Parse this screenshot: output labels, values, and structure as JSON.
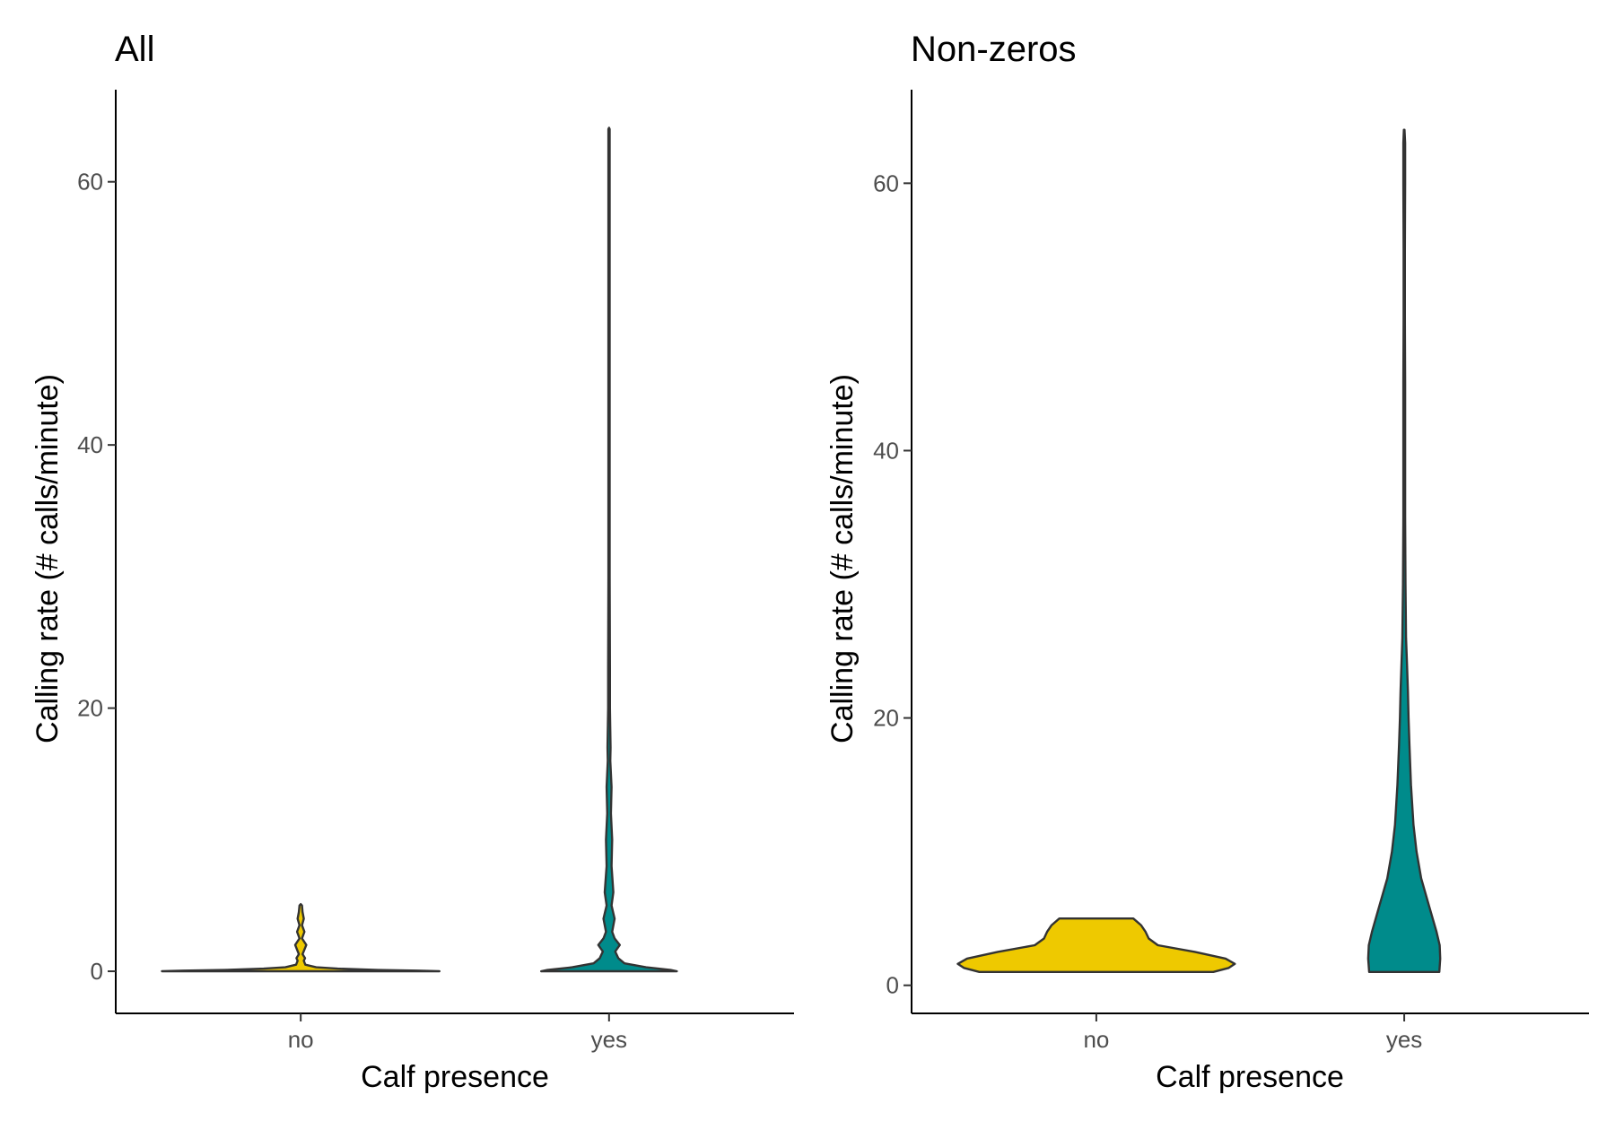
{
  "chart_data": [
    {
      "type": "violin",
      "title": "All",
      "xlabel": "Calf presence",
      "ylabel": "Calling rate (# calls/minute)",
      "categories": [
        "no",
        "yes"
      ],
      "yticks": [
        0,
        20,
        40,
        60
      ],
      "ylim": [
        -3.2,
        67
      ],
      "colors": [
        "#EEC900",
        "#008B8B"
      ],
      "violins": [
        {
          "category": "no",
          "fill": "#EEC900",
          "max_halfwidth": 0.45,
          "profile": [
            [
              0,
              0.45
            ],
            [
              0.05,
              0.38
            ],
            [
              0.1,
              0.25
            ],
            [
              0.2,
              0.12
            ],
            [
              0.3,
              0.05
            ],
            [
              0.5,
              0.015
            ],
            [
              0.8,
              0.01
            ],
            [
              1.0,
              0.014
            ],
            [
              1.3,
              0.006
            ],
            [
              2.0,
              0.018
            ],
            [
              2.5,
              0.004
            ],
            [
              3.0,
              0.012
            ],
            [
              3.5,
              0.004
            ],
            [
              4.0,
              0.01
            ],
            [
              4.5,
              0.006
            ],
            [
              5.0,
              0.004
            ],
            [
              5.1,
              0
            ]
          ]
        },
        {
          "category": "yes",
          "fill": "#008B8B",
          "max_halfwidth": 0.22,
          "profile": [
            [
              0,
              0.22
            ],
            [
              0.1,
              0.2
            ],
            [
              0.3,
              0.12
            ],
            [
              0.6,
              0.05
            ],
            [
              1.0,
              0.03
            ],
            [
              1.5,
              0.02
            ],
            [
              2.0,
              0.035
            ],
            [
              2.5,
              0.018
            ],
            [
              3.0,
              0.01
            ],
            [
              4.0,
              0.018
            ],
            [
              5.0,
              0.008
            ],
            [
              6.0,
              0.014
            ],
            [
              8.0,
              0.008
            ],
            [
              10.0,
              0.01
            ],
            [
              12.0,
              0.006
            ],
            [
              14.0,
              0.008
            ],
            [
              16.0,
              0.004
            ],
            [
              17.0,
              0.005
            ],
            [
              20.0,
              0.003
            ],
            [
              23.0,
              0.003
            ],
            [
              30.0,
              0.002
            ],
            [
              40.0,
              0.002
            ],
            [
              50.0,
              0.002
            ],
            [
              64.0,
              0.002
            ],
            [
              64.1,
              0
            ]
          ]
        }
      ]
    },
    {
      "type": "violin",
      "title": "Non-zeros",
      "xlabel": "Calf presence",
      "ylabel": "Calling rate (# calls/minute)",
      "categories": [
        "no",
        "yes"
      ],
      "yticks": [
        0,
        20,
        40,
        60
      ],
      "ylim": [
        -2.1,
        67
      ],
      "colors": [
        "#EEC900",
        "#008B8B"
      ],
      "violins": [
        {
          "category": "no",
          "fill": "#EEC900",
          "max_halfwidth": 0.45,
          "profile": [
            [
              1.0,
              0.38
            ],
            [
              1.3,
              0.43
            ],
            [
              1.6,
              0.45
            ],
            [
              2.0,
              0.42
            ],
            [
              2.5,
              0.32
            ],
            [
              3.0,
              0.2
            ],
            [
              3.5,
              0.17
            ],
            [
              4.0,
              0.16
            ],
            [
              4.5,
              0.145
            ],
            [
              5.0,
              0.12
            ]
          ]
        },
        {
          "category": "yes",
          "fill": "#008B8B",
          "max_halfwidth": 0.117,
          "profile": [
            [
              1.0,
              0.114
            ],
            [
              2.0,
              0.117
            ],
            [
              3.0,
              0.115
            ],
            [
              4.0,
              0.105
            ],
            [
              6.0,
              0.08
            ],
            [
              8.0,
              0.055
            ],
            [
              10.0,
              0.04
            ],
            [
              12.0,
              0.03
            ],
            [
              15.0,
              0.022
            ],
            [
              18.0,
              0.017
            ],
            [
              20.0,
              0.014
            ],
            [
              22.0,
              0.012
            ],
            [
              24.0,
              0.009
            ],
            [
              26.0,
              0.006
            ],
            [
              30.0,
              0.004
            ],
            [
              35.0,
              0.003
            ],
            [
              40.0,
              0.003
            ],
            [
              45.0,
              0.003
            ],
            [
              50.0,
              0.002
            ],
            [
              55.0,
              0.002
            ],
            [
              60.0,
              0.003
            ],
            [
              63.0,
              0.003
            ],
            [
              64.0,
              0.001
            ]
          ]
        }
      ]
    }
  ]
}
